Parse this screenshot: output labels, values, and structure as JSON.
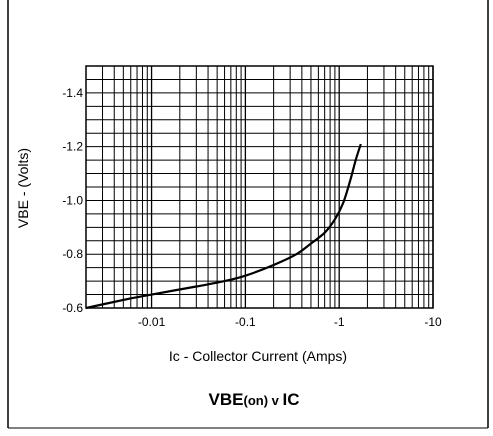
{
  "chart_data": {
    "type": "line",
    "title": {
      "main": "VBE",
      "suffix": "(on) v ",
      "main2": "IC"
    },
    "xlabel": "Ic - Collector Current (Amps)",
    "ylabel": "VBE - (Volts)",
    "x_scale": "log",
    "xlim": [
      0.002,
      10
    ],
    "ylim": [
      -0.6,
      -1.5
    ],
    "x_ticks": [
      {
        "value": 0.01,
        "label": "-0.01"
      },
      {
        "value": 0.1,
        "label": "-0.1"
      },
      {
        "value": 1,
        "label": "-1"
      },
      {
        "value": 10,
        "label": "-10"
      }
    ],
    "y_ticks": [
      {
        "value": -0.6,
        "label": "-0.6"
      },
      {
        "value": -0.8,
        "label": "-0.8"
      },
      {
        "value": -1.0,
        "label": "-1.0"
      },
      {
        "value": -1.2,
        "label": "-1.2"
      },
      {
        "value": -1.4,
        "label": "-1.4"
      }
    ],
    "grid": true,
    "series": [
      {
        "x": [
          0.002,
          0.005,
          0.01,
          0.03,
          0.06,
          0.1,
          0.2,
          0.35,
          0.5,
          0.7,
          0.9,
          1.1,
          1.3,
          1.5,
          1.7
        ],
        "y": [
          -0.6,
          -0.63,
          -0.65,
          -0.68,
          -0.7,
          -0.72,
          -0.76,
          -0.8,
          -0.84,
          -0.88,
          -0.93,
          -0.99,
          -1.07,
          -1.15,
          -1.21
        ]
      }
    ]
  }
}
